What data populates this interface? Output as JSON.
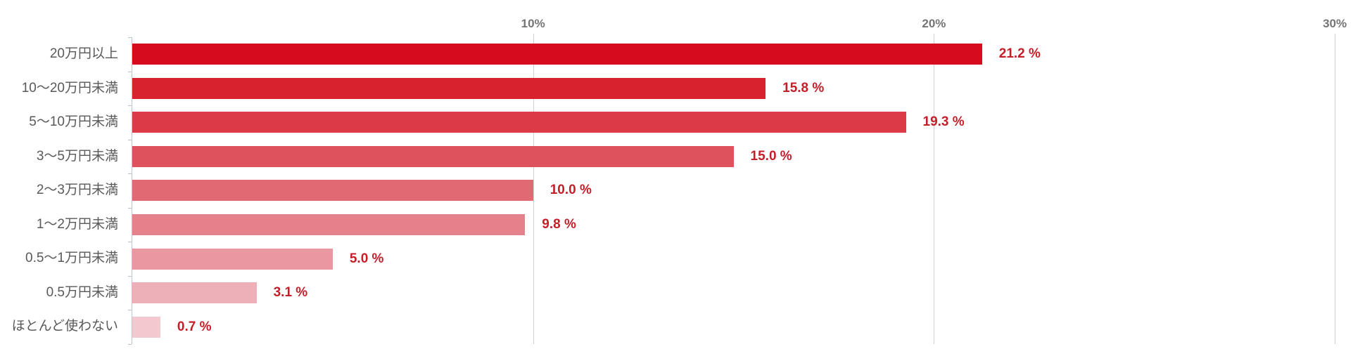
{
  "chart_data": {
    "type": "bar",
    "orientation": "horizontal",
    "title": "",
    "xlabel": "",
    "ylabel": "",
    "grid": true,
    "legend": false,
    "categories": [
      "20万円以上",
      "10〜20万円未満",
      "5〜10万円未満",
      "3〜5万円未満",
      "2〜3万円未満",
      "1〜2万円未満",
      "0.5〜1万円未満",
      "0.5万円未満",
      "ほとんど使わない"
    ],
    "values": [
      21.2,
      15.8,
      19.3,
      15.0,
      10.0,
      9.8,
      5.0,
      3.1,
      0.7
    ],
    "value_labels": [
      "21.2 %",
      "15.8 %",
      "19.3 %",
      "15.0 %",
      "10.0 %",
      "9.8 %",
      "5.0 %",
      "3.1 %",
      "0.7 %"
    ],
    "bar_colors": [
      "#d60c1e",
      "#d8232f",
      "#db3a46",
      "#de525d",
      "#e16974",
      "#e4818b",
      "#e998a1",
      "#eeb0b8",
      "#f3c8ce"
    ],
    "axis": {
      "ticks": [
        10,
        20,
        30
      ],
      "tick_labels": [
        "10%",
        "20%",
        "30%"
      ],
      "xlim": [
        0,
        30.9
      ]
    },
    "colors": {
      "value_label": "#c41e29",
      "category_label": "#595959",
      "tick_label": "#757575",
      "axis_line": "#b9c5ce",
      "gridline": "#d0d0d0",
      "background": "#ffffff"
    }
  }
}
